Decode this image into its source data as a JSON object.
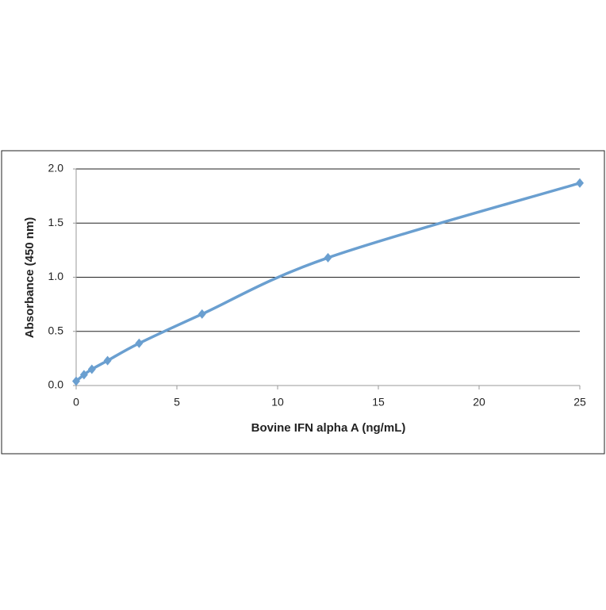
{
  "chart_data": {
    "type": "scatter",
    "xlabel": "Bovine IFN alpha A (ng/mL)",
    "ylabel": "Absorbance (450 nm)",
    "series": [
      {
        "color": "#6a9fd0",
        "x": [
          0,
          0.39,
          0.78,
          1.56,
          3.125,
          6.25,
          12.5,
          25
        ],
        "values": [
          0.04,
          0.1,
          0.15,
          0.23,
          0.39,
          0.66,
          1.18,
          1.87
        ]
      }
    ],
    "xlim": [
      0,
      25
    ],
    "xticks": [
      0,
      5,
      10,
      15,
      20,
      25
    ],
    "ylim": [
      0,
      2
    ],
    "yticks": [
      {
        "value": 0,
        "label": "0.0"
      },
      0.5,
      {
        "value": 1,
        "label": "1.0"
      },
      1.5,
      {
        "value": 2,
        "label": "2.0"
      }
    ],
    "grid": true,
    "smooth": true
  }
}
